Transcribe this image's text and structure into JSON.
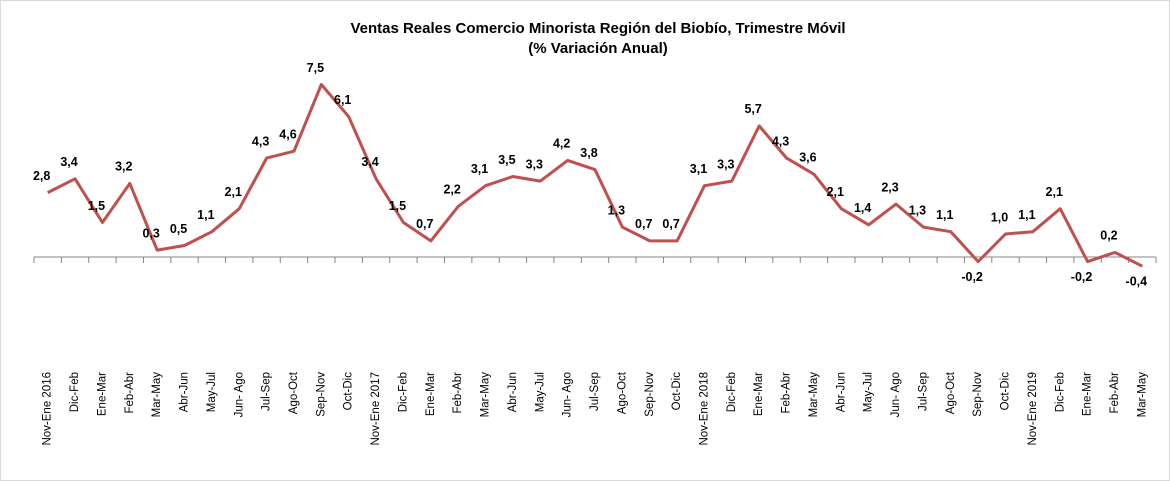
{
  "chart_data": {
    "type": "line",
    "title": "Ventas Reales Comercio Minorista Región del Biobío, Trimestre Móvil",
    "subtitle": "(% Variación Anual)",
    "categories": [
      "Nov-Ene 2016",
      "Dic-Feb",
      "Ene-Mar",
      "Feb-Abr",
      "Mar-May",
      "Abr-Jun",
      "May-Jul",
      "Jun- Ago",
      "Jul-Sep",
      "Ago-Oct",
      "Sep-Nov",
      "Oct-Dic",
      "Nov-Ene 2017",
      "Dic-Feb",
      "Ene-Mar",
      "Feb-Abr",
      "Mar-May",
      "Abr-Jun",
      "May-Jul",
      "Jun- Ago",
      "Jul-Sep",
      "Ago-Oct",
      "Sep-Nov",
      "Oct-Dic",
      "Nov-Ene 2018",
      "Dic-Feb",
      "Ene-Mar",
      "Feb-Abr",
      "Mar-May",
      "Abr-Jun",
      "May-Jul",
      "Jun- Ago",
      "Jul-Sep",
      "Ago-Oct",
      "Sep-Nov",
      "Oct-Dic",
      "Nov-Ene 2019",
      "Dic-Feb",
      "Ene-Mar",
      "Feb-Abr",
      "Mar-May"
    ],
    "series": [
      {
        "color": "#c0504d",
        "values": [
          2.8,
          3.4,
          1.5,
          3.2,
          0.3,
          0.5,
          1.1,
          2.1,
          4.3,
          4.6,
          7.5,
          6.1,
          3.4,
          1.5,
          0.7,
          2.2,
          3.1,
          3.5,
          3.3,
          4.2,
          3.8,
          1.3,
          0.7,
          0.7,
          3.1,
          3.3,
          5.7,
          4.3,
          3.6,
          2.1,
          1.4,
          2.3,
          1.3,
          1.1,
          -0.2,
          1.0,
          1.1,
          2.1,
          -0.2,
          0.2,
          -0.4
        ],
        "value_labels": [
          "2,8",
          "3,4",
          "1,5",
          "3,2",
          "0,3",
          "0,5",
          "1,1",
          "2,1",
          "4,3",
          "4,6",
          "7,5",
          "6,1",
          "3,4",
          "1,5",
          "0,7",
          "2,2",
          "3,1",
          "3,5",
          "3,3",
          "4,2",
          "3,8",
          "1,3",
          "0,7",
          "0,7",
          "3,1",
          "3,3",
          "5,7",
          "4,3",
          "3,6",
          "2,1",
          "1,4",
          "2,3",
          "1,3",
          "1,1",
          "-0,2",
          "1,0",
          "1,1",
          "2,1",
          "-0,2",
          "0,2",
          "-0,4"
        ]
      }
    ],
    "ylim": [
      -4,
      8
    ]
  }
}
